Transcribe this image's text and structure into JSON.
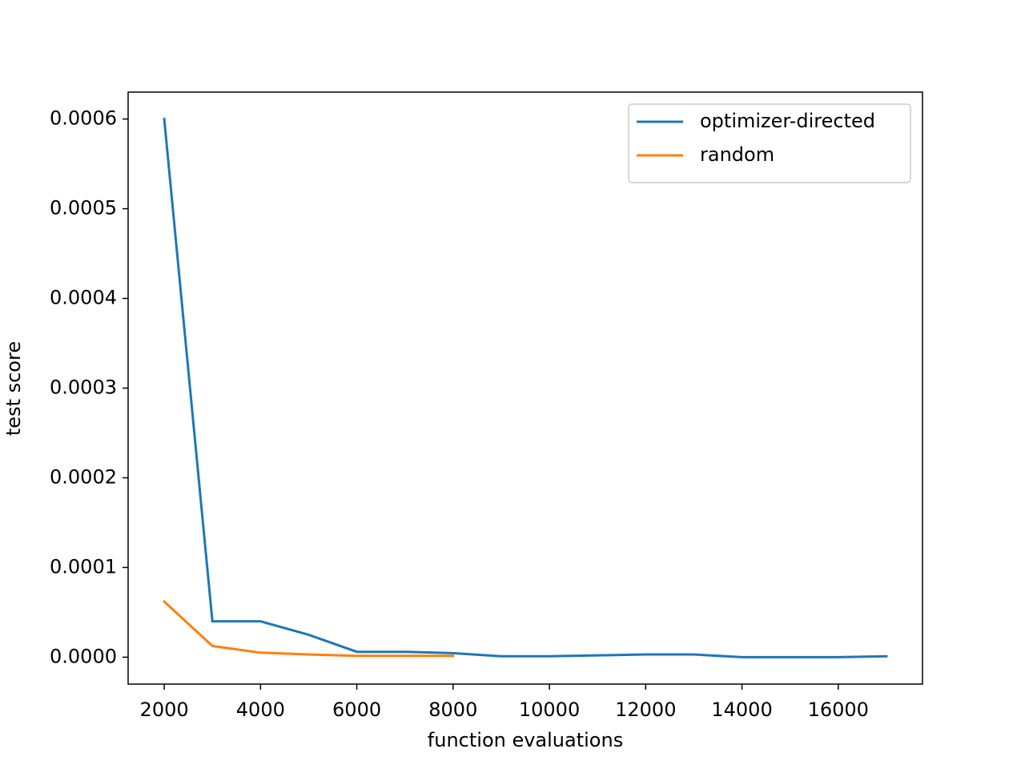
{
  "chart_data": {
    "type": "line",
    "x_label": "function evaluations",
    "y_label": "test score",
    "x": [
      2000,
      3000,
      4000,
      5000,
      6000,
      7000,
      8000,
      9000,
      10000,
      11000,
      12000,
      13000,
      14000,
      15000,
      16000,
      17000
    ],
    "series": [
      {
        "name": "optimizer-directed",
        "color": "#1f77b4",
        "values": [
          0.0006,
          4e-05,
          4e-05,
          2.5e-05,
          6e-06,
          6e-06,
          4.5e-06,
          1e-06,
          1e-06,
          2e-06,
          3e-06,
          3e-06,
          0,
          0,
          0,
          1e-06
        ]
      },
      {
        "name": "random",
        "color": "#ff7f0e",
        "values": [
          6.2e-05,
          1.25e-05,
          5e-06,
          3e-06,
          1.5e-06,
          1.5e-06,
          1.5e-06,
          null,
          null,
          null,
          null,
          null,
          null,
          null,
          null,
          null
        ]
      }
    ],
    "xlim": [
      1250,
      17750
    ],
    "xticks": [
      2000,
      4000,
      6000,
      8000,
      10000,
      12000,
      14000,
      16000
    ],
    "ylim": [
      -3e-05,
      0.00063
    ],
    "yticks": [
      {
        "value": 0,
        "label": "0.0000"
      },
      {
        "value": 0.0001,
        "label": "0.0001"
      },
      {
        "value": 0.0002,
        "label": "0.0002"
      },
      {
        "value": 0.0003,
        "label": "0.0003"
      },
      {
        "value": 0.0004,
        "label": "0.0004"
      },
      {
        "value": 0.0005,
        "label": "0.0005"
      },
      {
        "value": 0.0006,
        "label": "0.0006"
      }
    ],
    "legend": "upper right",
    "grid": false
  }
}
